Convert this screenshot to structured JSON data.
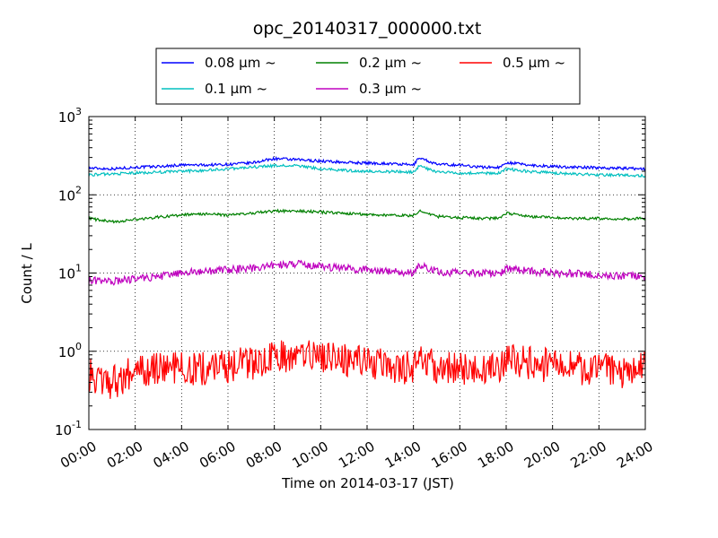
{
  "chart_data": {
    "type": "line",
    "title": "opc_20140317_000000.txt",
    "xlabel": "Time on 2014-03-17 (JST)",
    "ylabel": "Count / L",
    "xlim": [
      "2014-03-17T00:00",
      "2014-03-18T00:00"
    ],
    "ylim": [
      0.1,
      1000
    ],
    "yscale": "log",
    "grid": true,
    "legend_position": "top, above plot, 3 columns",
    "x_ticks": [
      "00:00",
      "02:00",
      "04:00",
      "06:00",
      "08:00",
      "10:00",
      "12:00",
      "14:00",
      "16:00",
      "18:00",
      "20:00",
      "22:00",
      "24:00"
    ],
    "y_ticks": [
      {
        "base": "10",
        "exp": "-1"
      },
      {
        "base": "10",
        "exp": "0"
      },
      {
        "base": "10",
        "exp": "1"
      },
      {
        "base": "10",
        "exp": "2"
      },
      {
        "base": "10",
        "exp": "3"
      }
    ],
    "x": [
      "00:00",
      "01:00",
      "02:00",
      "03:00",
      "04:00",
      "05:00",
      "06:00",
      "07:00",
      "08:00",
      "09:00",
      "10:00",
      "11:00",
      "12:00",
      "13:00",
      "14:00",
      "14:15",
      "15:00",
      "16:00",
      "17:00",
      "17:45",
      "18:00",
      "19:00",
      "20:00",
      "21:00",
      "22:00",
      "23:00",
      "24:00"
    ],
    "series": [
      {
        "name": "0.08 μm ~",
        "color": "#0000ff",
        "values": [
          220,
          215,
          225,
          230,
          240,
          240,
          245,
          255,
          290,
          280,
          270,
          260,
          255,
          250,
          240,
          300,
          245,
          240,
          225,
          225,
          260,
          240,
          230,
          225,
          222,
          218,
          215
        ]
      },
      {
        "name": "0.1 μm ~",
        "color": "#00bfbf",
        "values": [
          180,
          185,
          190,
          195,
          200,
          205,
          215,
          225,
          235,
          235,
          215,
          205,
          200,
          198,
          195,
          235,
          195,
          190,
          188,
          190,
          215,
          198,
          190,
          185,
          180,
          178,
          175
        ]
      },
      {
        "name": "0.2 μm ~",
        "color": "#008000",
        "values": [
          50,
          45,
          48,
          52,
          55,
          57,
          55,
          58,
          62,
          62,
          60,
          58,
          56,
          55,
          54,
          62,
          53,
          51,
          50,
          50,
          58,
          53,
          51,
          50,
          50,
          49,
          50
        ]
      },
      {
        "name": "0.3 μm ~",
        "color": "#bf00bf",
        "values": [
          8,
          7.8,
          8.5,
          9,
          10,
          10.5,
          11,
          11.5,
          12.5,
          13,
          12,
          11.5,
          11,
          10.5,
          10,
          12.5,
          10.5,
          10,
          10,
          10,
          11.5,
          10.5,
          10,
          9.8,
          9.5,
          9.2,
          9
        ]
      },
      {
        "name": "0.5 μm ~",
        "color": "#ff0000",
        "values": [
          0.5,
          0.4,
          0.55,
          0.6,
          0.6,
          0.6,
          0.65,
          0.7,
          0.85,
          0.9,
          0.85,
          0.75,
          0.7,
          0.65,
          0.6,
          0.8,
          0.65,
          0.6,
          0.6,
          0.65,
          0.8,
          0.7,
          0.65,
          0.6,
          0.6,
          0.55,
          0.6
        ]
      }
    ]
  }
}
